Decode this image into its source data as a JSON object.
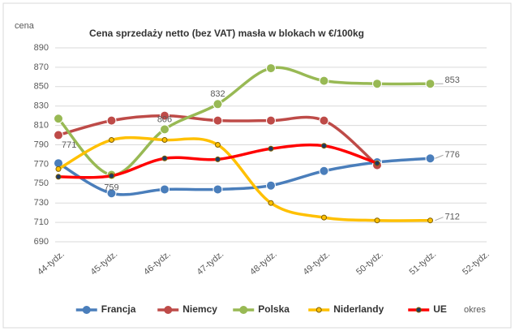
{
  "chart_data": {
    "type": "line",
    "title": "Cena sprzedaży netto (bez VAT) masła w blokach w €/100kg",
    "y_label": "cena",
    "x_label": "okres",
    "categories": [
      "44-tydz.",
      "45-tydz.",
      "46-tydz.",
      "47-tydz.",
      "48-tydz.",
      "49-tydz.",
      "50-tydz.",
      "51-tydz.",
      "52-tydz."
    ],
    "ylim": [
      690,
      890
    ],
    "yticks": [
      690,
      710,
      730,
      750,
      770,
      790,
      810,
      830,
      850,
      870,
      890
    ],
    "grid": true,
    "legend": "bottom",
    "series": [
      {
        "name": "Francja",
        "color": "#4a7ebb",
        "values": [
          771,
          740,
          744,
          744,
          748,
          763,
          772,
          776,
          null
        ],
        "value_labels": [
          "771",
          null,
          null,
          null,
          null,
          null,
          null,
          "776",
          null
        ]
      },
      {
        "name": "Niemcy",
        "color": "#be4b48",
        "values": [
          800,
          815,
          820,
          815,
          815,
          815,
          769,
          null,
          null
        ]
      },
      {
        "name": "Polska",
        "color": "#98b954",
        "values": [
          817,
          759,
          806,
          832,
          869,
          856,
          853,
          853,
          null
        ],
        "value_labels": [
          null,
          "759",
          "806",
          "832",
          null,
          null,
          null,
          "853",
          null
        ]
      },
      {
        "name": "Niderlandy",
        "color": "#ffc000",
        "values": [
          765,
          795,
          795,
          790,
          730,
          715,
          712,
          712,
          null
        ],
        "value_labels": [
          null,
          null,
          null,
          null,
          null,
          null,
          null,
          "712",
          null
        ]
      },
      {
        "name": "UE",
        "color": "#ff0000",
        "values": [
          757,
          758,
          776,
          775,
          786,
          789,
          771,
          null,
          null
        ]
      }
    ]
  }
}
